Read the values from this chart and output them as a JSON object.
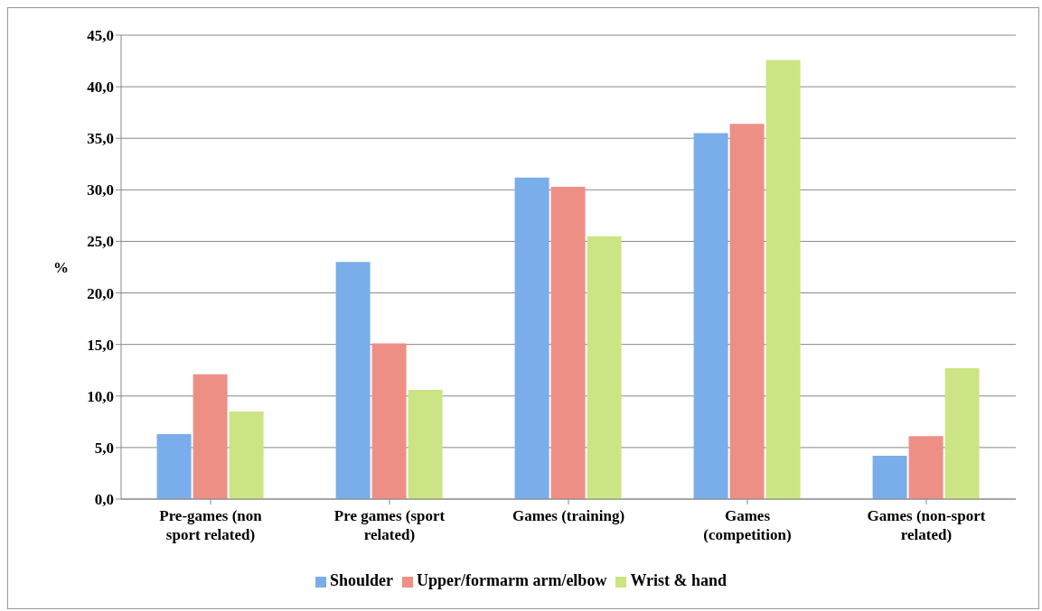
{
  "chart_data": {
    "type": "bar",
    "ylabel": "%",
    "categories": [
      "Pre-games (non sport related)",
      "Pre games (sport related)",
      "Games (training)",
      "Games (competition)",
      "Games (non-sport related)"
    ],
    "series": [
      {
        "name": "Shoulder",
        "color": "#7aaeea",
        "values": [
          6.3,
          23.0,
          31.2,
          35.5,
          4.2
        ]
      },
      {
        "name": "Upper/formarm arm/elbow",
        "color": "#ee8f85",
        "values": [
          12.1,
          15.1,
          30.3,
          36.4,
          6.1
        ]
      },
      {
        "name": "Wrist & hand",
        "color": "#cbe584",
        "values": [
          8.5,
          10.6,
          25.5,
          42.6,
          12.7
        ]
      }
    ],
    "ylim": [
      0,
      45
    ],
    "yticks": [
      {
        "value": 0,
        "label": "0,0"
      },
      {
        "value": 5,
        "label": "5,0"
      },
      {
        "value": 10,
        "label": "10,0"
      },
      {
        "value": 15,
        "label": "15,0"
      },
      {
        "value": 20,
        "label": "20,0"
      },
      {
        "value": 25,
        "label": "25,0"
      },
      {
        "value": 30,
        "label": "30,0"
      },
      {
        "value": 35,
        "label": "35,0"
      },
      {
        "value": 40,
        "label": "40,0"
      },
      {
        "value": 45,
        "label": "45,0"
      }
    ],
    "grid": "y",
    "legend": "bottom"
  }
}
